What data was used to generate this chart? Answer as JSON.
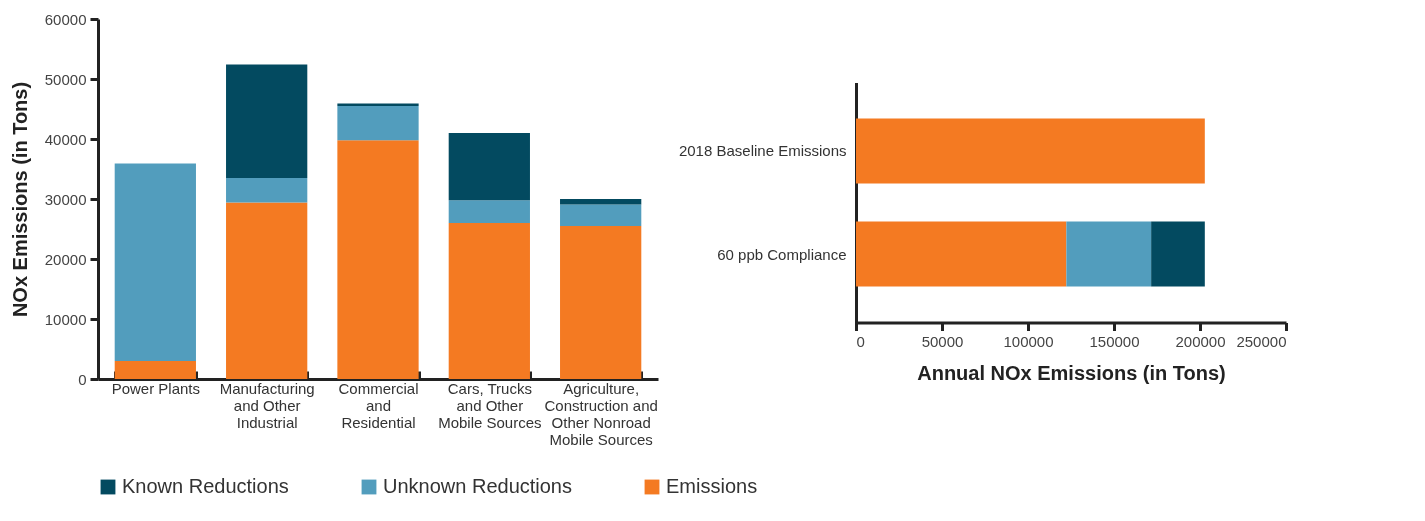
{
  "chart_data": [
    {
      "type": "bar",
      "stacked": true,
      "ylabel": "NOx Emissions (in Tons)",
      "categories": [
        "Power Plants",
        "Manufacturing\nand Other\nIndustrial",
        "Commercial\nand\nResidential",
        "Cars, Trucks\nand Other\nMobile Sources",
        "Agriculture,\nConstruction and\nOther Nonroad\nMobile Sources"
      ],
      "ylim": [
        0,
        60000
      ],
      "yticks": [
        0,
        10000,
        20000,
        30000,
        40000,
        50000,
        60000
      ],
      "grid": false,
      "legend": "bottom",
      "series": [
        {
          "name": "Emissions",
          "color": "#f47a22",
          "values": [
            3000,
            29400,
            39800,
            26000,
            25500
          ]
        },
        {
          "name": "Unknown Reductions",
          "color": "#529dbd",
          "values": [
            32900,
            4100,
            5700,
            3800,
            3600
          ]
        },
        {
          "name": "Known Reductions",
          "color": "#034a60",
          "values": [
            0,
            18900,
            400,
            11200,
            900
          ]
        }
      ]
    },
    {
      "type": "bar",
      "stacked": true,
      "orientation": "horizontal",
      "xlabel": "Annual NOx Emissions (in Tons)",
      "categories": [
        "2018 Baseline Emissions",
        "60 ppb Compliance"
      ],
      "xlim": [
        0,
        250000
      ],
      "xticks": [
        0,
        50000,
        100000,
        150000,
        200000,
        250000
      ],
      "grid": false,
      "legend": "bottom",
      "series": [
        {
          "name": "Emissions",
          "color": "#f47a22",
          "values": [
            202800,
            122300
          ]
        },
        {
          "name": "Unknown Reductions",
          "color": "#529dbd",
          "values": [
            null,
            49300
          ]
        },
        {
          "name": "Known Reductions",
          "color": "#034a60",
          "values": [
            null,
            31200
          ]
        }
      ]
    }
  ]
}
